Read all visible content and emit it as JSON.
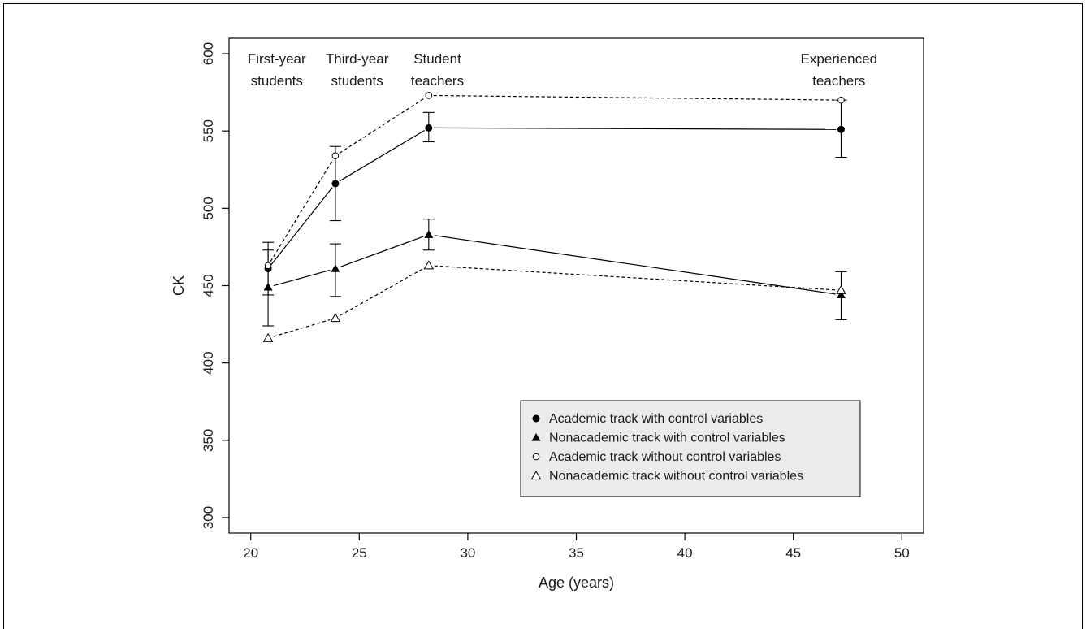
{
  "chart_data": {
    "type": "line",
    "xlabel": "Age (years)",
    "ylabel": "CK",
    "xlim": [
      19,
      51
    ],
    "ylim": [
      290,
      610
    ],
    "xticks": [
      20,
      25,
      30,
      35,
      40,
      45,
      50
    ],
    "yticks": [
      300,
      350,
      400,
      450,
      500,
      550,
      600
    ],
    "phase_labels": [
      {
        "x": 21.2,
        "lines": [
          "First-year",
          "students"
        ]
      },
      {
        "x": 24.9,
        "lines": [
          "Third-year",
          "students"
        ]
      },
      {
        "x": 28.6,
        "lines": [
          "Student",
          "teachers"
        ]
      },
      {
        "x": 47.1,
        "lines": [
          "Experienced",
          "teachers"
        ]
      }
    ],
    "series": [
      {
        "name": "Academic track with control variables",
        "marker": "filled-circle",
        "line": "solid",
        "x": [
          20.8,
          23.9,
          28.2,
          47.2
        ],
        "y": [
          461,
          516,
          552,
          551
        ],
        "err_low": [
          444,
          492,
          543,
          533
        ],
        "err_high": [
          478,
          540,
          562,
          570
        ]
      },
      {
        "name": "Nonacademic track with control variables",
        "marker": "filled-triangle",
        "line": "solid",
        "x": [
          20.8,
          23.9,
          28.2,
          47.2
        ],
        "y": [
          449,
          461,
          483,
          444
        ],
        "err_low": [
          424,
          443,
          473,
          428
        ],
        "err_high": [
          473,
          477,
          493,
          459
        ]
      },
      {
        "name": "Academic track without control variables",
        "marker": "open-circle",
        "line": "dashed",
        "x": [
          20.8,
          23.9,
          28.2,
          47.2
        ],
        "y": [
          463,
          534,
          573,
          570
        ]
      },
      {
        "name": "Nonacademic track without control variables",
        "marker": "open-triangle",
        "line": "dashed",
        "x": [
          20.8,
          23.9,
          28.2,
          47.2
        ],
        "y": [
          416,
          429,
          463,
          447
        ]
      }
    ],
    "legend_position": "bottom-right",
    "grid": false
  }
}
